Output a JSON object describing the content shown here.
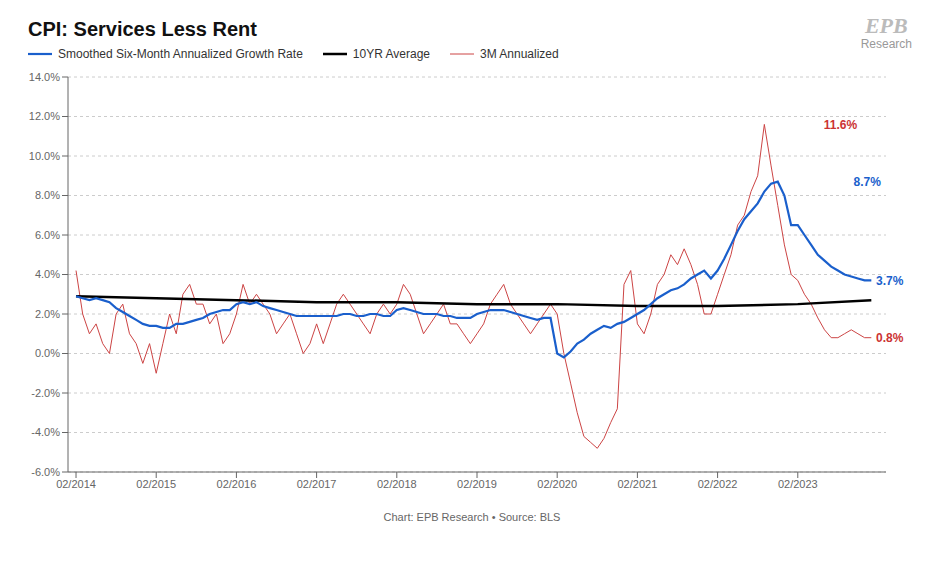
{
  "chart_data": {
    "type": "line",
    "title": "CPI: Services Less Rent",
    "subtitle": "Chart: EPB Research • Source: BLS",
    "xlim": [
      -0.1,
      10.1
    ],
    "xticks": [
      {
        "value": 0,
        "label": "02/2014"
      },
      {
        "value": 1,
        "label": "02/2015"
      },
      {
        "value": 2,
        "label": "02/2016"
      },
      {
        "value": 3,
        "label": "02/2017"
      },
      {
        "value": 4,
        "label": "02/2018"
      },
      {
        "value": 5,
        "label": "02/2019"
      },
      {
        "value": 6,
        "label": "02/2020"
      },
      {
        "value": 7,
        "label": "02/2021"
      },
      {
        "value": 8,
        "label": "02/2022"
      },
      {
        "value": 9,
        "label": "02/2023"
      }
    ],
    "ylim": [
      -0.06,
      0.14
    ],
    "yticks": [
      {
        "value": -0.06,
        "label": "-6.0%"
      },
      {
        "value": -0.04,
        "label": "-4.0%"
      },
      {
        "value": -0.02,
        "label": "-2.0%"
      },
      {
        "value": 0.0,
        "label": "0.0%"
      },
      {
        "value": 0.02,
        "label": "2.0%"
      },
      {
        "value": 0.04,
        "label": "4.0%"
      },
      {
        "value": 0.06,
        "label": "6.0%"
      },
      {
        "value": 0.08,
        "label": "8.0%"
      },
      {
        "value": 0.1,
        "label": "10.0%"
      },
      {
        "value": 0.12,
        "label": "12.0%"
      },
      {
        "value": 0.14,
        "label": "14.0%"
      }
    ],
    "grid": true,
    "legend": "top",
    "series": [
      {
        "name": "Smoothed Six-Month Annualized Growth Rate",
        "color": "#1A5FCC",
        "x": [
          0,
          0.083,
          0.167,
          0.25,
          0.333,
          0.417,
          0.5,
          0.583,
          0.667,
          0.75,
          0.833,
          0.917,
          1.0,
          1.083,
          1.167,
          1.25,
          1.333,
          1.417,
          1.5,
          1.583,
          1.667,
          1.75,
          1.833,
          1.917,
          2.0,
          2.083,
          2.167,
          2.25,
          2.333,
          2.417,
          2.5,
          2.583,
          2.667,
          2.75,
          2.833,
          2.917,
          3.0,
          3.083,
          3.167,
          3.25,
          3.333,
          3.417,
          3.5,
          3.583,
          3.667,
          3.75,
          3.833,
          3.917,
          4.0,
          4.083,
          4.167,
          4.25,
          4.333,
          4.417,
          4.5,
          4.583,
          4.667,
          4.75,
          4.833,
          4.917,
          5.0,
          5.083,
          5.167,
          5.25,
          5.333,
          5.417,
          5.5,
          5.583,
          5.667,
          5.75,
          5.833,
          5.917,
          6.0,
          6.083,
          6.167,
          6.25,
          6.333,
          6.417,
          6.5,
          6.583,
          6.667,
          6.75,
          6.833,
          6.917,
          7.0,
          7.083,
          7.167,
          7.25,
          7.333,
          7.417,
          7.5,
          7.583,
          7.667,
          7.75,
          7.833,
          7.917,
          8.0,
          8.083,
          8.167,
          8.25,
          8.333,
          8.417,
          8.5,
          8.583,
          8.667,
          8.75,
          8.833,
          8.917,
          9.0,
          9.083,
          9.167,
          9.25,
          9.333,
          9.417,
          9.5,
          9.583,
          9.667,
          9.75,
          9.833,
          9.917
        ],
        "values": [
          0.029,
          0.028,
          0.027,
          0.028,
          0.027,
          0.026,
          0.023,
          0.021,
          0.019,
          0.017,
          0.015,
          0.014,
          0.014,
          0.013,
          0.013,
          0.015,
          0.015,
          0.016,
          0.017,
          0.018,
          0.02,
          0.021,
          0.022,
          0.022,
          0.025,
          0.026,
          0.025,
          0.026,
          0.024,
          0.023,
          0.022,
          0.021,
          0.02,
          0.019,
          0.019,
          0.019,
          0.019,
          0.019,
          0.019,
          0.019,
          0.02,
          0.02,
          0.019,
          0.019,
          0.02,
          0.02,
          0.019,
          0.019,
          0.022,
          0.023,
          0.022,
          0.021,
          0.02,
          0.02,
          0.02,
          0.019,
          0.019,
          0.018,
          0.018,
          0.018,
          0.02,
          0.021,
          0.022,
          0.022,
          0.022,
          0.021,
          0.02,
          0.019,
          0.018,
          0.017,
          0.018,
          0.018,
          0.0,
          -0.002,
          0.001,
          0.005,
          0.007,
          0.01,
          0.012,
          0.014,
          0.013,
          0.015,
          0.016,
          0.018,
          0.02,
          0.022,
          0.025,
          0.028,
          0.03,
          0.032,
          0.033,
          0.035,
          0.038,
          0.04,
          0.042,
          0.038,
          0.042,
          0.048,
          0.055,
          0.062,
          0.068,
          0.072,
          0.076,
          0.082,
          0.086,
          0.087,
          0.08,
          0.065,
          0.065,
          0.06,
          0.055,
          0.05,
          0.047,
          0.044,
          0.042,
          0.04,
          0.039,
          0.038,
          0.037,
          0.037
        ]
      },
      {
        "name": "10YR Average",
        "color": "#000000",
        "x": [
          0,
          1.0,
          2.0,
          3.0,
          4.0,
          5.0,
          6.0,
          7.0,
          8.0,
          9.0,
          9.917
        ],
        "values": [
          0.029,
          0.028,
          0.027,
          0.026,
          0.026,
          0.025,
          0.025,
          0.024,
          0.024,
          0.025,
          0.027
        ]
      },
      {
        "name": "3M Annualized",
        "color": "#cc4444",
        "x": [
          0,
          0.083,
          0.167,
          0.25,
          0.333,
          0.417,
          0.5,
          0.583,
          0.667,
          0.75,
          0.833,
          0.917,
          1.0,
          1.083,
          1.167,
          1.25,
          1.333,
          1.417,
          1.5,
          1.583,
          1.667,
          1.75,
          1.833,
          1.917,
          2.0,
          2.083,
          2.167,
          2.25,
          2.333,
          2.417,
          2.5,
          2.583,
          2.667,
          2.75,
          2.833,
          2.917,
          3.0,
          3.083,
          3.167,
          3.25,
          3.333,
          3.417,
          3.5,
          3.583,
          3.667,
          3.75,
          3.833,
          3.917,
          4.0,
          4.083,
          4.167,
          4.25,
          4.333,
          4.417,
          4.5,
          4.583,
          4.667,
          4.75,
          4.833,
          4.917,
          5.0,
          5.083,
          5.167,
          5.25,
          5.333,
          5.417,
          5.5,
          5.583,
          5.667,
          5.75,
          5.833,
          5.917,
          6.0,
          6.083,
          6.167,
          6.25,
          6.333,
          6.417,
          6.5,
          6.583,
          6.667,
          6.75,
          6.833,
          6.917,
          7.0,
          7.083,
          7.167,
          7.25,
          7.333,
          7.417,
          7.5,
          7.583,
          7.667,
          7.75,
          7.833,
          7.917,
          8.0,
          8.083,
          8.167,
          8.25,
          8.333,
          8.417,
          8.5,
          8.583,
          8.667,
          8.75,
          8.833,
          8.917,
          9.0,
          9.083,
          9.167,
          9.25,
          9.333,
          9.417,
          9.5,
          9.583,
          9.667,
          9.75,
          9.833,
          9.917
        ],
        "values": [
          0.042,
          0.02,
          0.01,
          0.015,
          0.005,
          0.0,
          0.02,
          0.025,
          0.01,
          0.005,
          -0.005,
          0.005,
          -0.01,
          0.005,
          0.02,
          0.01,
          0.03,
          0.035,
          0.025,
          0.025,
          0.015,
          0.02,
          0.005,
          0.01,
          0.02,
          0.035,
          0.025,
          0.03,
          0.025,
          0.02,
          0.01,
          0.015,
          0.02,
          0.01,
          0.0,
          0.005,
          0.015,
          0.005,
          0.015,
          0.025,
          0.03,
          0.025,
          0.02,
          0.015,
          0.01,
          0.02,
          0.025,
          0.02,
          0.025,
          0.035,
          0.03,
          0.02,
          0.01,
          0.015,
          0.02,
          0.025,
          0.015,
          0.015,
          0.01,
          0.005,
          0.01,
          0.015,
          0.025,
          0.03,
          0.035,
          0.025,
          0.02,
          0.015,
          0.01,
          0.015,
          0.02,
          0.025,
          0.02,
          0.0,
          -0.015,
          -0.03,
          -0.042,
          -0.045,
          -0.048,
          -0.043,
          -0.035,
          -0.028,
          0.035,
          0.042,
          0.015,
          0.01,
          0.02,
          0.035,
          0.04,
          0.05,
          0.045,
          0.053,
          0.045,
          0.035,
          0.02,
          0.02,
          0.03,
          0.04,
          0.05,
          0.065,
          0.07,
          0.082,
          0.09,
          0.116,
          0.095,
          0.075,
          0.055,
          0.04,
          0.037,
          0.03,
          0.025,
          0.018,
          0.012,
          0.008,
          0.008,
          0.01,
          0.012,
          0.01,
          0.008,
          0.008
        ]
      }
    ],
    "annotations": [
      {
        "text": "11.6%",
        "x": 9.25,
        "y": 0.116,
        "color": "#cc3333"
      },
      {
        "text": "8.7%",
        "x": 9.62,
        "y": 0.087,
        "color": "#1A5FCC"
      },
      {
        "text": "3.7%",
        "x": 9.9,
        "y": 0.037,
        "color": "#1A5FCC"
      },
      {
        "text": "0.8%",
        "x": 9.9,
        "y": 0.008,
        "color": "#cc3333"
      },
      {
        "text": "EPB"
      },
      {
        "text": "Research"
      }
    ]
  }
}
